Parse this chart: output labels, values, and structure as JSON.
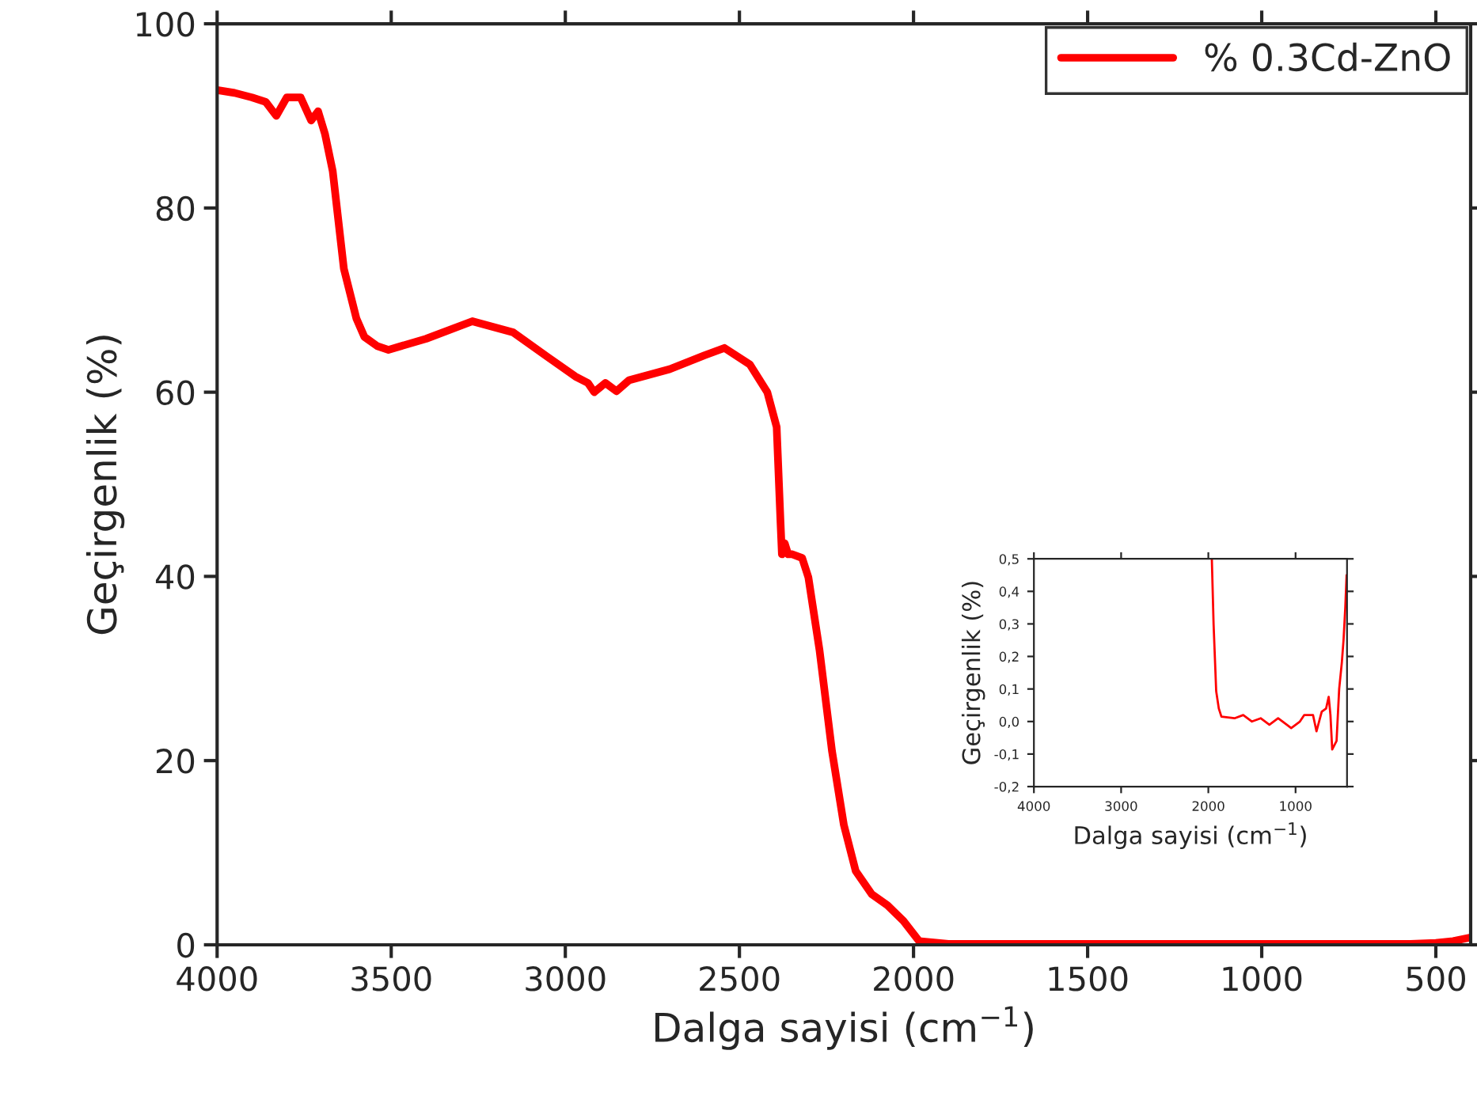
{
  "chart_data": [
    {
      "type": "line",
      "xlabel": "Dalga sayisi (cm$^{−1}$)",
      "ylabel": "Geçirgenlik (%)",
      "xlim": [
        4000,
        400
      ],
      "ylim": [
        0,
        100
      ],
      "xticks": [
        4000,
        3500,
        3000,
        2500,
        2000,
        1500,
        1000,
        500
      ],
      "yticks": [
        0,
        20,
        40,
        60,
        80,
        100
      ],
      "legend": "top right",
      "grid": false,
      "series": [
        {
          "name": "% 0.3Cd-ZnO",
          "color": "#ff0000",
          "x": [
            4000,
            3950,
            3900,
            3860,
            3830,
            3800,
            3760,
            3730,
            3710,
            3690,
            3668,
            3636,
            3600,
            3577,
            3540,
            3508,
            3400,
            3267,
            3150,
            3050,
            2971,
            2935,
            2917,
            2885,
            2853,
            2817,
            2700,
            2600,
            2543,
            2470,
            2420,
            2393,
            2382,
            2378,
            2370,
            2360,
            2348,
            2320,
            2302,
            2270,
            2234,
            2200,
            2166,
            2120,
            2075,
            2029,
            1984,
            1900,
            1500,
            1000,
            573,
            500,
            450,
            400
          ],
          "values": [
            92.8,
            92.5,
            92.0,
            91.5,
            90.0,
            92.0,
            92.0,
            89.5,
            90.5,
            88.0,
            84.0,
            73.4,
            68.0,
            66.0,
            65.0,
            64.6,
            65.8,
            67.7,
            66.5,
            63.8,
            61.7,
            61.0,
            60.0,
            61.0,
            60.1,
            61.3,
            62.5,
            64.0,
            64.8,
            63.0,
            60.0,
            56.2,
            45.9,
            42.4,
            43.6,
            42.4,
            42.4,
            42.0,
            39.9,
            32.0,
            21.0,
            13.0,
            8.0,
            5.5,
            4.3,
            2.6,
            0.4,
            0.1,
            0.1,
            0.1,
            0.1,
            0.2,
            0.4,
            0.8
          ]
        }
      ]
    },
    {
      "type": "line",
      "xlabel": "Dalga sayisi (cm$^{−1}$)",
      "ylabel": "Geçirgenlik (%)",
      "xlim": [
        4000,
        410
      ],
      "ylim": [
        -0.2,
        0.5
      ],
      "xticks": [
        4000,
        3000,
        2000,
        1000
      ],
      "yticks": [
        {
          "value": -0.2,
          "label": "-0,2"
        },
        {
          "value": -0.1,
          "label": "-0,1"
        },
        {
          "value": 0.0,
          "label": "0,0"
        },
        {
          "value": 0.1,
          "label": "0,1"
        },
        {
          "value": 0.2,
          "label": "0,2"
        },
        {
          "value": 0.3,
          "label": "0,3"
        },
        {
          "value": 0.4,
          "label": "0,4"
        },
        {
          "value": 0.5,
          "label": "0,5"
        }
      ],
      "grid": false,
      "series": [
        {
          "color": "#ff0000",
          "x": [
            1960,
            1940,
            1910,
            1880,
            1850,
            1700,
            1600,
            1500,
            1400,
            1300,
            1200,
            1100,
            1050,
            950,
            900,
            800,
            760,
            700,
            650,
            620,
            600,
            580,
            550,
            530,
            500,
            470,
            450,
            430,
            415
          ],
          "values": [
            0.5,
            0.3,
            0.093,
            0.04,
            0.015,
            0.01,
            0.02,
            0.0,
            0.01,
            -0.01,
            0.01,
            -0.01,
            -0.02,
            0.0,
            0.02,
            0.02,
            -0.03,
            0.03,
            0.04,
            0.076,
            0.02,
            -0.086,
            -0.07,
            -0.06,
            0.1,
            0.18,
            0.25,
            0.35,
            0.45
          ]
        }
      ]
    }
  ]
}
